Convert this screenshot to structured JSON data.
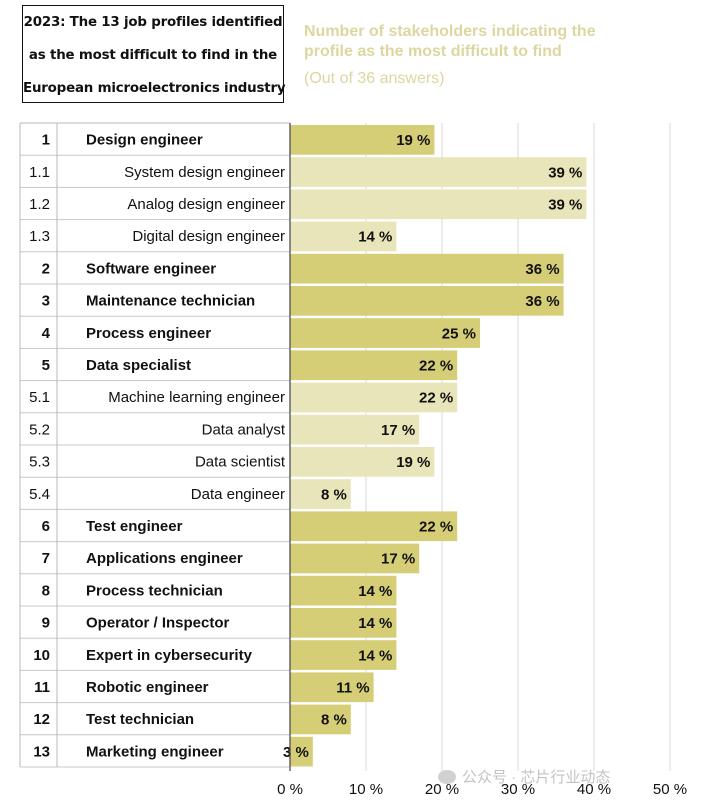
{
  "title_lines": [
    "2023: The 13 job profiles identified",
    "as the most difficult to find in the",
    "European microelectronics industry"
  ],
  "subtitle_lines": [
    "Number of stakeholders indicating the",
    "profile as the most difficult to find"
  ],
  "subtitle_note": "(Out of 36 answers)",
  "watermark": "公众号 · 芯片行业动态",
  "colors": {
    "main_bar": "#d6cd77",
    "sub_bar": "#e8e5ba",
    "grid": "#d9d9d9",
    "subtitle": "#dcd7a0"
  },
  "chart_data": {
    "type": "bar",
    "orientation": "horizontal",
    "value_suffix": " %",
    "xlim": [
      0,
      50
    ],
    "xticks": [
      0,
      10,
      20,
      30,
      40,
      50
    ],
    "xtick_labels": [
      "0 %",
      "10 %",
      "20 %",
      "30 %",
      "40 %",
      "50 %"
    ],
    "grid": true,
    "rows": [
      {
        "rank": "1",
        "label": "Design engineer",
        "value": 19,
        "level": "main"
      },
      {
        "rank": "1.1",
        "label": "System design engineer",
        "value": 39,
        "level": "sub"
      },
      {
        "rank": "1.2",
        "label": "Analog design engineer",
        "value": 39,
        "level": "sub"
      },
      {
        "rank": "1.3",
        "label": "Digital design engineer",
        "value": 14,
        "level": "sub"
      },
      {
        "rank": "2",
        "label": "Software engineer",
        "value": 36,
        "level": "main"
      },
      {
        "rank": "3",
        "label": "Maintenance technician",
        "value": 36,
        "level": "main"
      },
      {
        "rank": "4",
        "label": "Process engineer",
        "value": 25,
        "level": "main"
      },
      {
        "rank": "5",
        "label": "Data specialist",
        "value": 22,
        "level": "main"
      },
      {
        "rank": "5.1",
        "label": "Machine learning engineer",
        "value": 22,
        "level": "sub"
      },
      {
        "rank": "5.2",
        "label": "Data analyst",
        "value": 17,
        "level": "sub"
      },
      {
        "rank": "5.3",
        "label": "Data scientist",
        "value": 19,
        "level": "sub"
      },
      {
        "rank": "5.4",
        "label": "Data engineer",
        "value": 8,
        "level": "sub"
      },
      {
        "rank": "6",
        "label": "Test engineer",
        "value": 22,
        "level": "main"
      },
      {
        "rank": "7",
        "label": "Applications engineer",
        "value": 17,
        "level": "main"
      },
      {
        "rank": "8",
        "label": "Process technician",
        "value": 14,
        "level": "main"
      },
      {
        "rank": "9",
        "label": "Operator / Inspector",
        "value": 14,
        "level": "main"
      },
      {
        "rank": "10",
        "label": "Expert in cybersecurity",
        "value": 14,
        "level": "main"
      },
      {
        "rank": "11",
        "label": "Robotic engineer",
        "value": 11,
        "level": "main"
      },
      {
        "rank": "12",
        "label": "Test technician",
        "value": 8,
        "level": "main"
      },
      {
        "rank": "13",
        "label": "Marketing engineer",
        "value": 3,
        "level": "main"
      }
    ]
  }
}
